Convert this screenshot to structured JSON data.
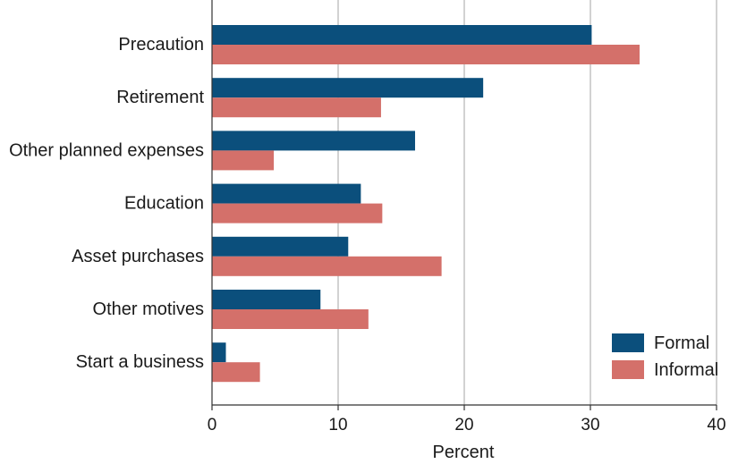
{
  "chart_data": {
    "type": "bar",
    "orientation": "horizontal",
    "categories": [
      "Precaution",
      "Retirement",
      "Other planned expenses",
      "Education",
      "Asset purchases",
      "Other motives",
      "Start a business"
    ],
    "series": [
      {
        "name": "Formal",
        "color": "#0b4f7c",
        "values": [
          30.1,
          21.5,
          16.1,
          11.8,
          10.8,
          8.6,
          1.1
        ]
      },
      {
        "name": "Informal",
        "color": "#d4706a",
        "values": [
          33.9,
          13.4,
          4.9,
          13.5,
          18.2,
          12.4,
          3.8
        ]
      }
    ],
    "xlabel": "Percent",
    "ylabel": "",
    "xlim": [
      0,
      40
    ],
    "xticks": [
      0,
      10,
      20,
      30,
      40
    ],
    "grid": "vertical",
    "legend": "bottom-right"
  }
}
